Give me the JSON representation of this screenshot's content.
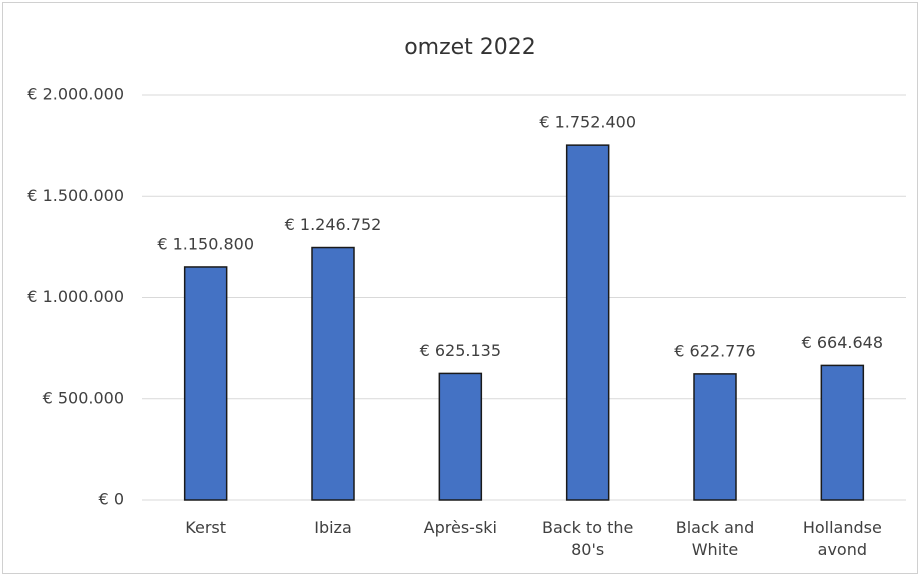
{
  "chart_data": {
    "type": "bar",
    "title": "omzet 2022",
    "categories": [
      "Kerst",
      "Ibiza",
      "Après-ski",
      "Back to the 80's",
      "Black and White",
      "Hollandse avond"
    ],
    "values": [
      1150800,
      1246752,
      625135,
      1752400,
      622776,
      664648
    ],
    "value_labels": [
      "€ 1.150.800",
      "€ 1.246.752",
      "€ 625.135",
      "€ 1.752.400",
      "€ 622.776",
      "€ 664.648"
    ],
    "color": "#4472c4",
    "ylim": [
      0,
      2000000
    ],
    "yticks": [
      {
        "value": 0,
        "label": "€ 0"
      },
      {
        "value": 500000,
        "label": "€ 500.000"
      },
      {
        "value": 1000000,
        "label": "€ 1.000.000"
      },
      {
        "value": 1500000,
        "label": "€ 1.500.000"
      },
      {
        "value": 2000000,
        "label": "€ 2.000.000"
      }
    ],
    "grid": true
  }
}
